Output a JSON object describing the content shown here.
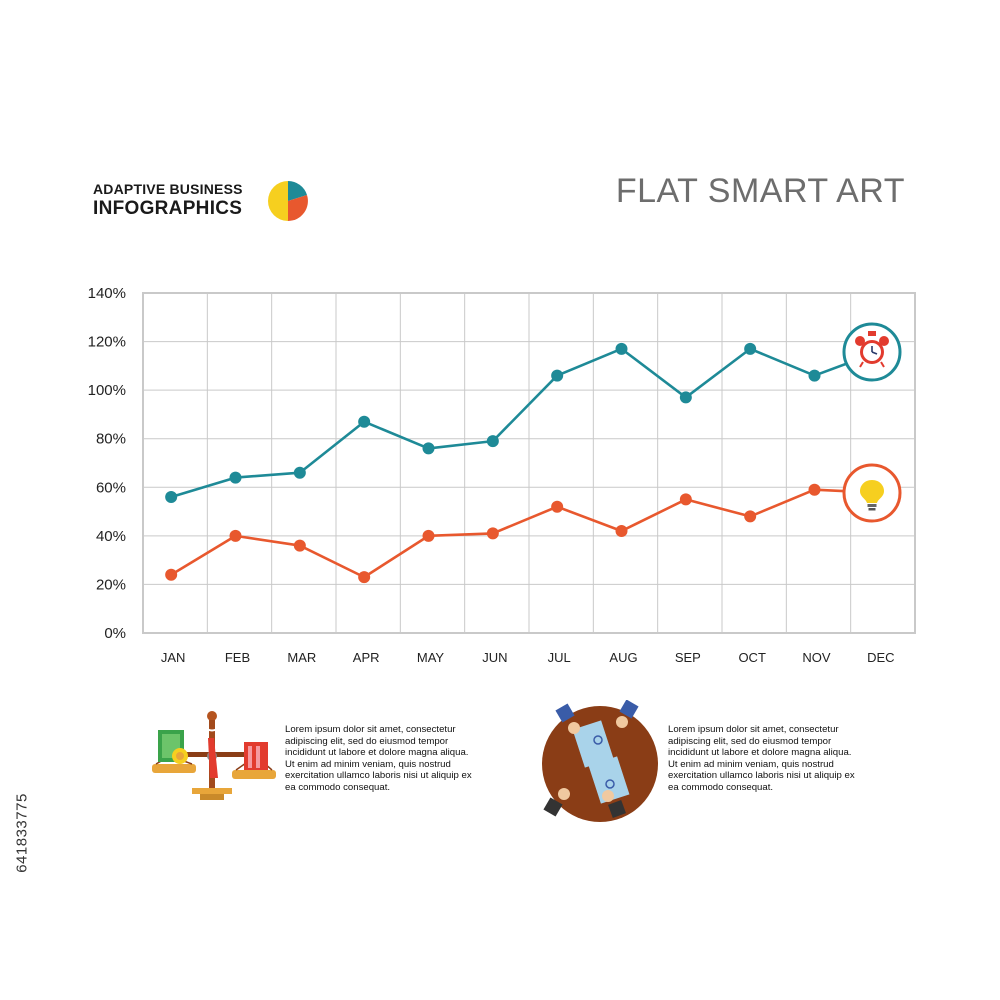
{
  "header": {
    "brand_line1": "ADAPTIVE BUSINESS",
    "brand_line2": "INFOGRAPHICS",
    "title": "FLAT SMART ART"
  },
  "chart_data": {
    "type": "line",
    "categories": [
      "JAN",
      "FEB",
      "MAR",
      "APR",
      "MAY",
      "JUN",
      "JUL",
      "AUG",
      "SEP",
      "OCT",
      "NOV",
      "DEC"
    ],
    "series": [
      {
        "color": "#1e8a97",
        "icon": "alarm-clock-icon",
        "values": [
          56,
          64,
          66,
          87,
          76,
          79,
          106,
          117,
          97,
          117,
          106,
          114
        ]
      },
      {
        "color": "#e8582e",
        "icon": "light-bulb-icon",
        "values": [
          24,
          40,
          36,
          23,
          40,
          41,
          52,
          42,
          55,
          48,
          59,
          58
        ]
      }
    ],
    "yticks": [
      "0%",
      "20%",
      "40%",
      "60%",
      "80%",
      "100%",
      "120%",
      "140%"
    ],
    "ylim": [
      0,
      140
    ],
    "grid": true,
    "legend": "none"
  },
  "notes": [
    {
      "text": "Lorem ipsum dolor sit amet, consectetur adipiscing elit, sed do eiusmod tempor incididunt ut labore et dolore magna aliqua. Ut enim ad minim veniam, quis nostrud exercitation ullamco laboris nisi ut aliquip ex ea commodo consequat.",
      "icon": "balance-scale-icon"
    },
    {
      "text": "Lorem ipsum dolor sit amet, consectetur adipiscing elit, sed do eiusmod tempor incididunt ut labore et dolore magna aliqua. Ut enim ad minim veniam, quis nostrud exercitation ullamco laboris nisi ut aliquip ex ea commodo consequat.",
      "icon": "business-meeting-icon"
    }
  ],
  "stock_id": "641833775",
  "colors": {
    "teal": "#1e8a97",
    "orange": "#e8582e",
    "grid": "#c9c9c9",
    "title_gray": "#6d6d6d"
  }
}
